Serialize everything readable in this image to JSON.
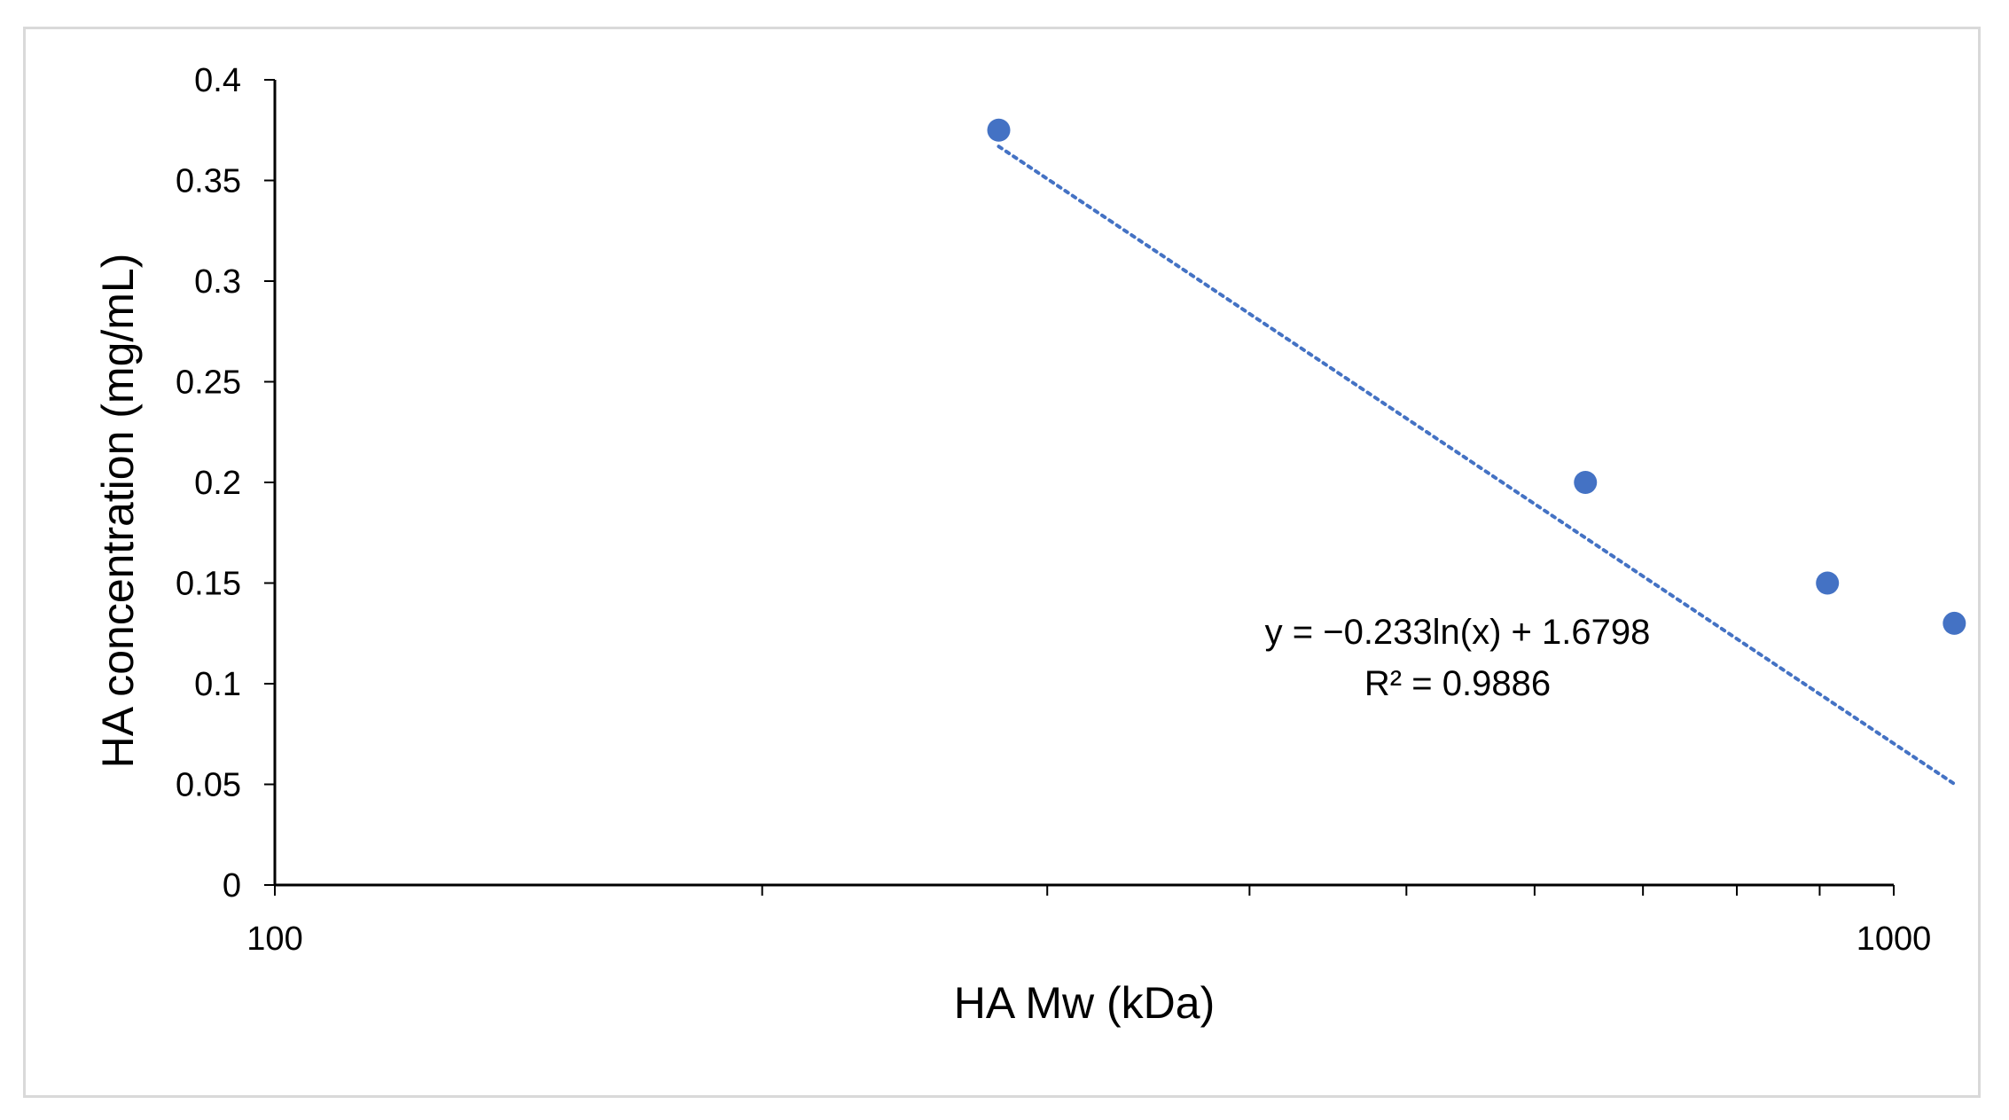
{
  "chart_data": {
    "type": "scatter",
    "title": "",
    "xlabel": "HA Mw (kDa)",
    "ylabel": "HA concentration (mg/mL)",
    "xscale": "log",
    "xlim": [
      100,
      1000
    ],
    "ylim": [
      0,
      0.4
    ],
    "x_ticks": [
      "100",
      "1000"
    ],
    "y_ticks": [
      "0",
      "0.05",
      "0.1",
      "0.15",
      "0.2",
      "0.25",
      "0.3",
      "0.35",
      "0.4"
    ],
    "grid": false,
    "legend": "none",
    "series": [
      {
        "x": [
          280,
          645,
          910,
          1090
        ],
        "y": [
          0.375,
          0.2,
          0.15,
          0.13
        ],
        "marker_color": "#4472c4"
      }
    ],
    "trendline": {
      "kind": "logarithmic",
      "a": -0.233,
      "b": 1.6798,
      "x_range": [
        280,
        1090
      ],
      "style": "dotted",
      "color": "#4472c4"
    },
    "annotations": {
      "equation": "y = −0.233ln(x) + 1.6798",
      "r_squared": "R² = 0.9886"
    }
  },
  "colors": {
    "marker": "#4472c4",
    "axis": "#000000",
    "frame": "#d9d9d9"
  }
}
